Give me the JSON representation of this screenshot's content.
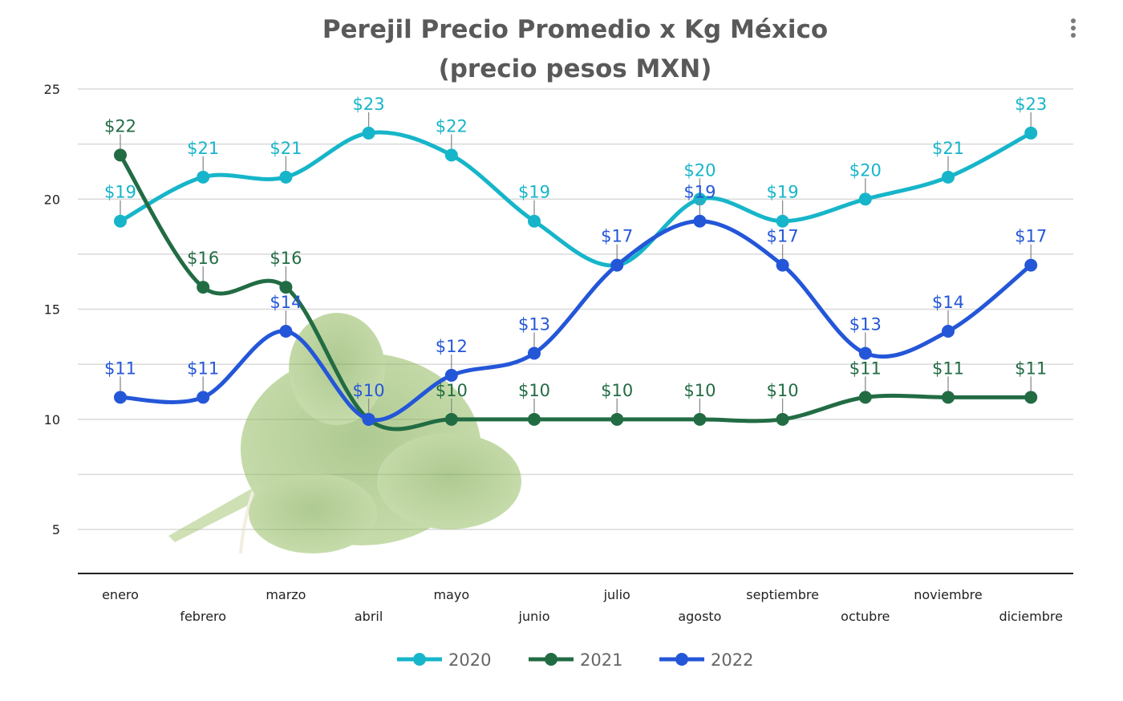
{
  "menu": {
    "icon": "more-vertical-icon"
  },
  "chart_data": {
    "type": "line",
    "title": [
      "Perejil Precio Promedio x Kg México",
      "(precio pesos MXN)"
    ],
    "categories": [
      "enero",
      "febrero",
      "marzo",
      "abril",
      "mayo",
      "junio",
      "julio",
      "agosto",
      "septiembre",
      "octubre",
      "noviembre",
      "diciembre"
    ],
    "ylim": [
      3,
      25
    ],
    "yticks": [
      5,
      10,
      15,
      20,
      25
    ],
    "grid": true,
    "legend": "bottom",
    "background_image": "parsley-bunch",
    "series": [
      {
        "name": "2020",
        "color": "#17b5c9",
        "label_color": "#17b5c9",
        "values": [
          19,
          21,
          21,
          23,
          22,
          19,
          17,
          20,
          19,
          20,
          21,
          23
        ],
        "labels": [
          "$19",
          "$21",
          "$21",
          "$23",
          "$22",
          "$19",
          "$17",
          "$20",
          "$19",
          "$20",
          "$21",
          "$23"
        ],
        "show_label": [
          true,
          true,
          true,
          true,
          true,
          true,
          false,
          true,
          true,
          true,
          true,
          true
        ]
      },
      {
        "name": "2021",
        "color": "#226c44",
        "label_color": "#226c44",
        "values": [
          22,
          16,
          16,
          10,
          10,
          10,
          10,
          10,
          10,
          11,
          11,
          11
        ],
        "labels": [
          "$22",
          "$16",
          "$16",
          "$10",
          "$10",
          "$10",
          "$10",
          "$10",
          "$10",
          "$11",
          "$11",
          "$11"
        ],
        "show_label": [
          true,
          true,
          true,
          false,
          true,
          true,
          true,
          true,
          true,
          true,
          true,
          true
        ]
      },
      {
        "name": "2022",
        "color": "#2456d8",
        "label_color": "#2456d8",
        "values": [
          11,
          11,
          14,
          10,
          12,
          13,
          17,
          19,
          17,
          13,
          14,
          17
        ],
        "labels": [
          "$11",
          "$11",
          "$14",
          "$10",
          "$12",
          "$13",
          "$17",
          "$19",
          "$17",
          "$13",
          "$14",
          "$17"
        ],
        "show_label": [
          true,
          true,
          true,
          true,
          true,
          true,
          true,
          true,
          true,
          true,
          true,
          true
        ]
      }
    ]
  }
}
